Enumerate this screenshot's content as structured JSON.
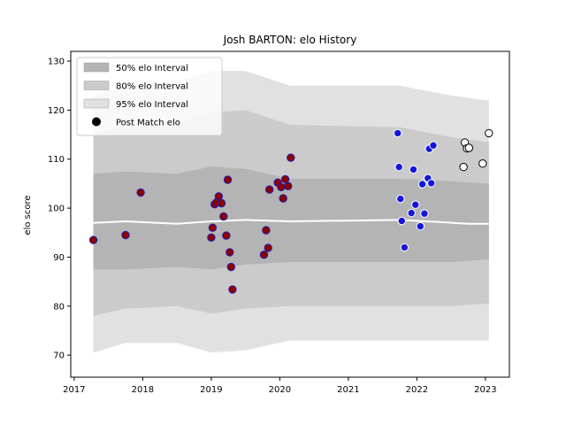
{
  "chart_data": {
    "type": "scatter",
    "title": "Josh BARTON: elo History",
    "xlabel": "",
    "ylabel": "elo score",
    "xlim": [
      2016.95,
      2023.35
    ],
    "ylim": [
      65.5,
      132
    ],
    "x_ticks": [
      2017,
      2018,
      2019,
      2020,
      2021,
      2022,
      2023
    ],
    "y_ticks": [
      70,
      80,
      90,
      100,
      110,
      120,
      130
    ],
    "legend_position": "top-left",
    "legend": [
      {
        "label": "50% elo Interval",
        "kind": "band",
        "color": "#b4b4b4"
      },
      {
        "label": "80% elo Interval",
        "kind": "band",
        "color": "#cbcbcb"
      },
      {
        "label": "95% elo Interval",
        "kind": "band",
        "color": "#e1e1e1"
      },
      {
        "label": "Post Match elo",
        "kind": "point",
        "color": "#000000"
      }
    ],
    "bands": {
      "x": [
        2017.28,
        2017.75,
        2018.5,
        2019.0,
        2019.5,
        2020.15,
        2021.75,
        2022.5,
        2023.0,
        2023.05
      ],
      "p95_low": [
        70.5,
        72.5,
        72.5,
        70.5,
        71.0,
        73.0,
        73.0,
        73.0,
        73.0,
        73.0
      ],
      "p95_high": [
        123.0,
        125.0,
        126.0,
        128.0,
        128.0,
        125.0,
        125.0,
        123.0,
        122.0,
        122.0
      ],
      "p80_low": [
        78.0,
        79.5,
        80.0,
        78.5,
        79.5,
        80.0,
        80.0,
        80.0,
        80.5,
        80.5
      ],
      "p80_high": [
        115.0,
        117.0,
        117.5,
        119.5,
        120.0,
        117.0,
        116.5,
        114.5,
        113.5,
        113.5
      ],
      "p50_low": [
        87.5,
        87.5,
        88.0,
        87.5,
        88.5,
        89.0,
        89.0,
        89.0,
        89.5,
        89.5
      ],
      "p50_high": [
        107.0,
        107.5,
        107.0,
        108.5,
        108.0,
        106.0,
        106.0,
        105.5,
        105.0,
        105.0
      ]
    },
    "mean_line": {
      "color": "#ffffff",
      "x": [
        2017.28,
        2017.75,
        2018.5,
        2019.0,
        2019.5,
        2020.15,
        2021.75,
        2022.3,
        2022.75,
        2023.05
      ],
      "y": [
        97.0,
        97.3,
        96.8,
        97.3,
        97.6,
        97.3,
        97.6,
        97.2,
        96.8,
        96.8
      ]
    },
    "series": [
      {
        "fill": "#8b0000",
        "edge": "#1e1eb4",
        "points": [
          [
            2017.28,
            93.5
          ],
          [
            2017.75,
            94.5
          ],
          [
            2017.97,
            103.2
          ],
          [
            2019.0,
            94.0
          ],
          [
            2019.02,
            96.0
          ],
          [
            2019.05,
            100.8
          ],
          [
            2019.08,
            101.2
          ],
          [
            2019.11,
            102.4
          ],
          [
            2019.15,
            101.0
          ],
          [
            2019.18,
            98.3
          ],
          [
            2019.22,
            94.4
          ],
          [
            2019.24,
            105.8
          ],
          [
            2019.27,
            91.0
          ],
          [
            2019.29,
            88.0
          ],
          [
            2019.31,
            83.4
          ],
          [
            2019.77,
            90.5
          ],
          [
            2019.8,
            95.5
          ],
          [
            2019.83,
            91.9
          ],
          [
            2019.85,
            103.8
          ],
          [
            2019.97,
            105.2
          ],
          [
            2020.02,
            104.3
          ],
          [
            2020.05,
            102.0
          ],
          [
            2020.08,
            105.9
          ],
          [
            2020.12,
            104.5
          ],
          [
            2020.16,
            110.3
          ]
        ]
      },
      {
        "fill": "#1414dc",
        "edge": "#ffffff",
        "points": [
          [
            2021.72,
            115.3
          ],
          [
            2021.74,
            108.4
          ],
          [
            2021.76,
            101.9
          ],
          [
            2021.78,
            97.4
          ],
          [
            2021.82,
            92.0
          ],
          [
            2021.92,
            99.0
          ],
          [
            2021.95,
            107.9
          ],
          [
            2021.98,
            100.7
          ],
          [
            2022.05,
            96.3
          ],
          [
            2022.08,
            104.9
          ],
          [
            2022.11,
            98.9
          ],
          [
            2022.16,
            106.1
          ],
          [
            2022.18,
            112.1
          ],
          [
            2022.21,
            105.1
          ],
          [
            2022.24,
            112.8
          ]
        ]
      },
      {
        "fill": "#ffffff",
        "edge": "#000000",
        "points": [
          [
            2022.68,
            108.4
          ],
          [
            2022.7,
            113.4
          ],
          [
            2022.73,
            112.2
          ],
          [
            2022.76,
            112.3
          ],
          [
            2022.96,
            109.1
          ],
          [
            2023.05,
            115.3
          ]
        ]
      }
    ]
  }
}
